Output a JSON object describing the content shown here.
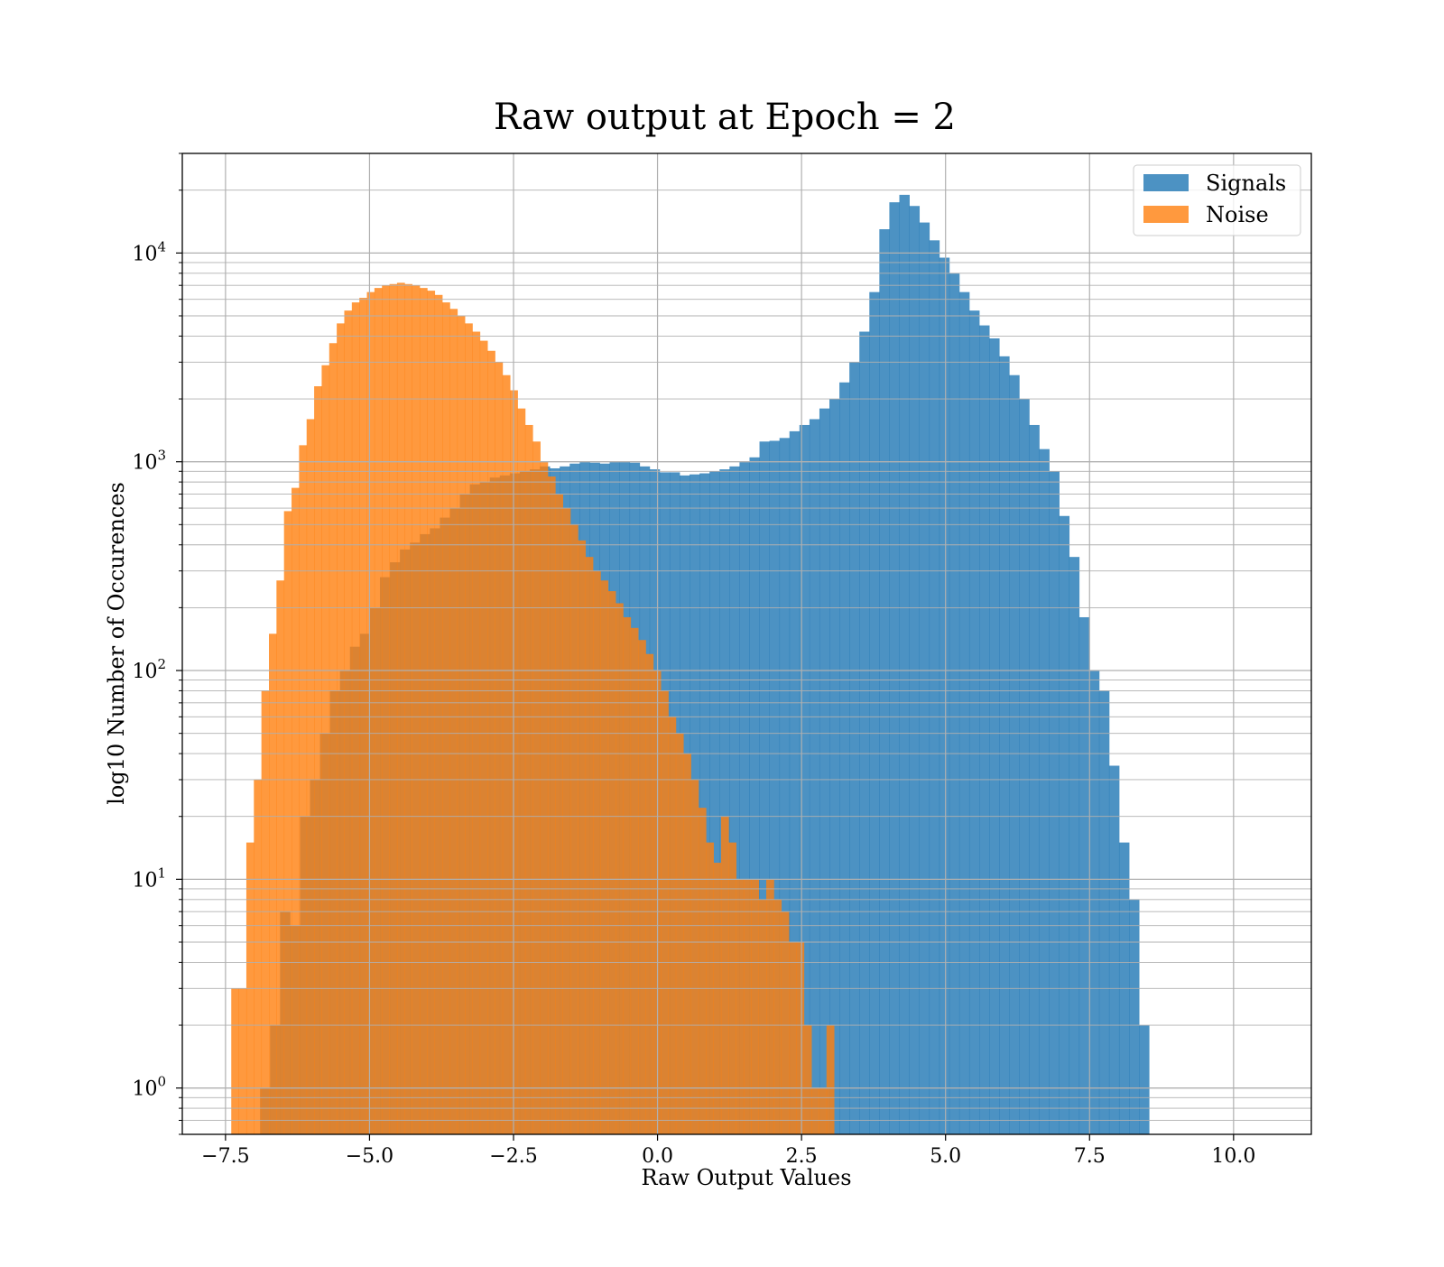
{
  "chart_data": {
    "type": "histogram",
    "title": "Raw output at Epoch = 2",
    "xlabel": "Raw Output Values",
    "ylabel": "log10 Number of Occurences",
    "yscale": "log",
    "xlim": [
      -8.25,
      11.35
    ],
    "ylim": [
      0.6,
      30000
    ],
    "grid": true,
    "legend_position": "top-right",
    "x_ticks": [
      -7.5,
      -5.0,
      -2.5,
      0.0,
      2.5,
      5.0,
      7.5,
      10.0
    ],
    "x_tick_labels": [
      "−7.5",
      "−5.0",
      "−2.5",
      "0.0",
      "2.5",
      "5.0",
      "7.5",
      "10.0"
    ],
    "y_ticks": [
      1,
      10,
      100,
      1000,
      10000
    ],
    "y_tick_bases": [
      "10",
      "10",
      "10",
      "10",
      "10"
    ],
    "y_tick_exponents": [
      "0",
      "1",
      "2",
      "3",
      "4"
    ],
    "series": [
      {
        "name": "Signals",
        "color": "#1f77b4",
        "opacity": 0.8,
        "bin_start": -6.9,
        "bin_width": 0.1734,
        "counts": [
          1,
          2,
          7,
          6,
          20,
          30,
          50,
          80,
          100,
          130,
          150,
          200,
          280,
          330,
          380,
          410,
          450,
          480,
          540,
          600,
          700,
          780,
          800,
          840,
          860,
          880,
          900,
          920,
          950,
          930,
          950,
          980,
          1000,
          990,
          980,
          1000,
          1000,
          990,
          950,
          920,
          890,
          890,
          860,
          870,
          880,
          900,
          920,
          950,
          1000,
          1050,
          1250,
          1260,
          1300,
          1400,
          1500,
          1600,
          1800,
          2000,
          2400,
          3000,
          4200,
          6500,
          13000,
          17500,
          19000,
          16800,
          14000,
          11500,
          9500,
          8000,
          6500,
          5300,
          4500,
          3900,
          3200,
          2600,
          2000,
          1500,
          1150,
          900,
          550,
          350,
          180,
          100,
          80,
          35,
          15,
          8,
          2
        ]
      },
      {
        "name": "Noise",
        "color": "#ff7f0e",
        "opacity": 0.8,
        "bin_start": -7.4,
        "bin_width": 0.1308,
        "counts": [
          3,
          3,
          15,
          30,
          80,
          150,
          270,
          580,
          750,
          1200,
          1600,
          2300,
          2900,
          3700,
          4600,
          5300,
          5800,
          6100,
          6500,
          6800,
          7000,
          7100,
          7200,
          7100,
          7000,
          6800,
          6600,
          6300,
          5800,
          5400,
          5000,
          4600,
          4200,
          3800,
          3400,
          3000,
          2600,
          2200,
          1800,
          1500,
          1250,
          1000,
          850,
          700,
          600,
          500,
          420,
          350,
          300,
          270,
          240,
          210,
          180,
          160,
          140,
          120,
          100,
          80,
          60,
          50,
          40,
          30,
          22,
          15,
          12,
          20,
          15,
          10,
          10,
          10,
          8,
          10,
          8,
          7,
          5,
          5,
          2,
          1,
          1,
          2
        ]
      }
    ]
  }
}
